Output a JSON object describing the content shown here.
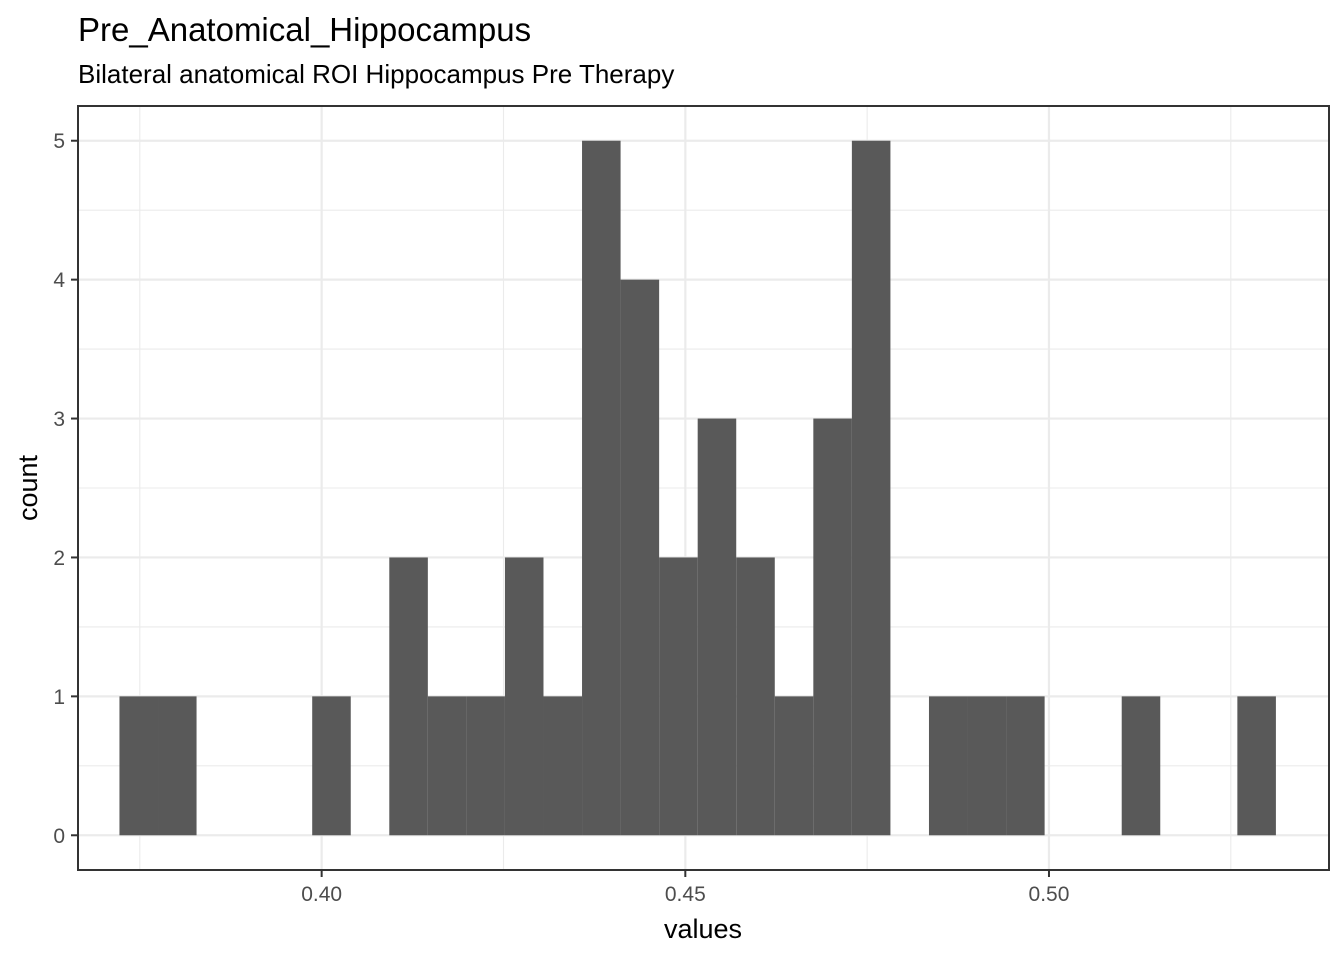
{
  "chart_data": {
    "type": "histogram",
    "title": "Pre_Anatomical_Hippocampus",
    "subtitle": "Bilateral anatomical ROI Hippocampus Pre Therapy",
    "xlabel": "values",
    "ylabel": "count",
    "xlim": [
      0.3665,
      0.5385
    ],
    "ylim": [
      -0.25,
      5.25
    ],
    "x_ticks": [
      {
        "value": 0.4,
        "label": "0.40"
      },
      {
        "value": 0.45,
        "label": "0.45"
      },
      {
        "value": 0.5,
        "label": "0.50"
      }
    ],
    "x_minor_ticks": [
      0.375,
      0.425,
      0.475,
      0.525
    ],
    "y_ticks": [
      {
        "value": 0,
        "label": "0"
      },
      {
        "value": 1,
        "label": "1"
      },
      {
        "value": 2,
        "label": "2"
      },
      {
        "value": 3,
        "label": "3"
      },
      {
        "value": 4,
        "label": "4"
      },
      {
        "value": 5,
        "label": "5"
      }
    ],
    "y_minor_ticks": [
      0.5,
      1.5,
      2.5,
      3.5,
      4.5
    ],
    "bin_width": 0.0053,
    "bins": [
      {
        "x0": 0.3722,
        "x1": 0.3775,
        "count": 1
      },
      {
        "x0": 0.3775,
        "x1": 0.3828,
        "count": 1
      },
      {
        "x0": 0.3828,
        "x1": 0.3881,
        "count": 0
      },
      {
        "x0": 0.3881,
        "x1": 0.3934,
        "count": 0
      },
      {
        "x0": 0.3934,
        "x1": 0.3987,
        "count": 0
      },
      {
        "x0": 0.3987,
        "x1": 0.404,
        "count": 1
      },
      {
        "x0": 0.404,
        "x1": 0.4093,
        "count": 0
      },
      {
        "x0": 0.4093,
        "x1": 0.4146,
        "count": 2
      },
      {
        "x0": 0.4146,
        "x1": 0.4199,
        "count": 1
      },
      {
        "x0": 0.4199,
        "x1": 0.4252,
        "count": 1
      },
      {
        "x0": 0.4252,
        "x1": 0.4305,
        "count": 2
      },
      {
        "x0": 0.4305,
        "x1": 0.4358,
        "count": 1
      },
      {
        "x0": 0.4358,
        "x1": 0.4411,
        "count": 5
      },
      {
        "x0": 0.4411,
        "x1": 0.4464,
        "count": 4
      },
      {
        "x0": 0.4464,
        "x1": 0.4517,
        "count": 2
      },
      {
        "x0": 0.4517,
        "x1": 0.457,
        "count": 3
      },
      {
        "x0": 0.457,
        "x1": 0.4623,
        "count": 2
      },
      {
        "x0": 0.4623,
        "x1": 0.4676,
        "count": 1
      },
      {
        "x0": 0.4676,
        "x1": 0.4729,
        "count": 3
      },
      {
        "x0": 0.4729,
        "x1": 0.4782,
        "count": 5
      },
      {
        "x0": 0.4782,
        "x1": 0.4835,
        "count": 0
      },
      {
        "x0": 0.4835,
        "x1": 0.4888,
        "count": 1
      },
      {
        "x0": 0.4888,
        "x1": 0.4941,
        "count": 1
      },
      {
        "x0": 0.4941,
        "x1": 0.4994,
        "count": 1
      },
      {
        "x0": 0.4994,
        "x1": 0.5047,
        "count": 0
      },
      {
        "x0": 0.5047,
        "x1": 0.51,
        "count": 0
      },
      {
        "x0": 0.51,
        "x1": 0.5153,
        "count": 1
      },
      {
        "x0": 0.5153,
        "x1": 0.5206,
        "count": 0
      },
      {
        "x0": 0.5206,
        "x1": 0.5259,
        "count": 0
      },
      {
        "x0": 0.5259,
        "x1": 0.5312,
        "count": 1
      }
    ],
    "bar_color": "#595959",
    "panel_background": "#ffffff",
    "grid": true,
    "legend": "none"
  }
}
